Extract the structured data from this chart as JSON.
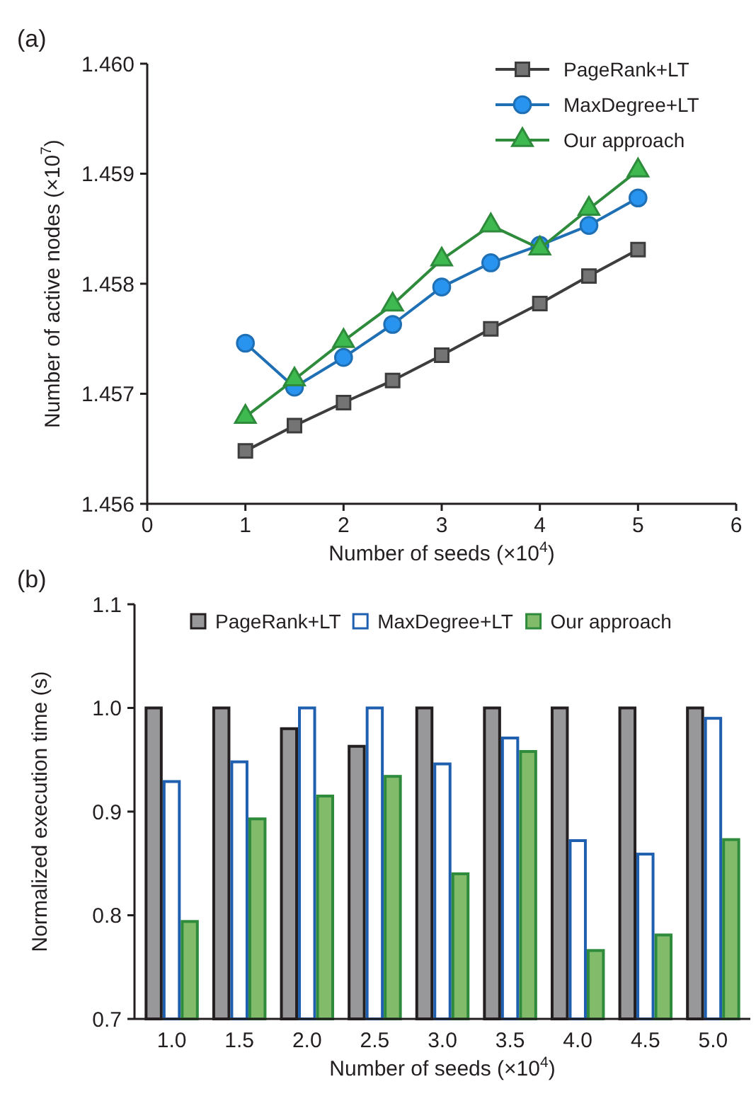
{
  "chart_data": [
    {
      "type": "line",
      "title": "(a)",
      "xlabel": "Number of seeds (×10$^{4}$)",
      "ylabel": "Number of active nodes (×10$^{7}$)",
      "x": [
        1,
        1.5,
        2,
        2.5,
        3,
        3.5,
        4,
        4.5,
        5
      ],
      "xlim": [
        0,
        6
      ],
      "xticks": [
        0,
        1,
        2,
        3,
        4,
        5,
        6
      ],
      "ylim": [
        1.456,
        1.46
      ],
      "yticks": [
        {
          "value": 1.456,
          "label": "1.456"
        },
        {
          "value": 1.457,
          "label": "1.457"
        },
        {
          "value": 1.458,
          "label": "1.458"
        },
        {
          "value": 1.459,
          "label": "1.459"
        },
        {
          "value": 1.46,
          "label": "1.460"
        }
      ],
      "grid": false,
      "legend": "top right",
      "series": [
        {
          "name": "PageRank+LT",
          "color": "#3d3d3d",
          "marker": "square",
          "values": [
            1.45648,
            1.45671,
            1.45692,
            1.45712,
            1.45735,
            1.45759,
            1.45782,
            1.45807,
            1.45831
          ]
        },
        {
          "name": "MaxDegree+LT",
          "color": "#1f6fb4",
          "marker": "circle",
          "values": [
            1.45746,
            1.45706,
            1.45733,
            1.45763,
            1.45797,
            1.45819,
            1.45835,
            1.45853,
            1.45878
          ]
        },
        {
          "name": "Our approach",
          "color": "#2e8b3c",
          "marker": "triangle",
          "values": [
            1.45679,
            1.45713,
            1.45748,
            1.45781,
            1.45822,
            1.45853,
            1.45832,
            1.45868,
            1.45903
          ]
        }
      ]
    },
    {
      "type": "bar",
      "title": "(b)",
      "xlabel": "Number of seeds (×10$^{4}$)",
      "ylabel": "Normalized execution time (s)",
      "categories": [
        "1.0",
        "1.5",
        "2.0",
        "2.5",
        "3.0",
        "3.5",
        "4.0",
        "4.5",
        "5.0"
      ],
      "ylim": [
        0.7,
        1.1
      ],
      "yticks": [
        {
          "value": 0.7,
          "label": "0.7"
        },
        {
          "value": 0.8,
          "label": "0.8"
        },
        {
          "value": 0.9,
          "label": "0.9"
        },
        {
          "value": 1.0,
          "label": "1.0"
        },
        {
          "value": 1.1,
          "label": "1.1"
        }
      ],
      "grid": false,
      "legend": "top",
      "series": [
        {
          "name": "PageRank+LT",
          "color": "#98989a",
          "values": [
            1,
            1,
            0.98,
            0.963,
            1,
            1,
            1,
            1,
            1
          ]
        },
        {
          "name": "MaxDegree+LT",
          "color": "#ffffff",
          "values": [
            0.929,
            0.948,
            1,
            1,
            0.946,
            0.971,
            0.872,
            0.859,
            0.99
          ]
        },
        {
          "name": "Our approach",
          "color": "#82bb6a",
          "values": [
            0.794,
            0.893,
            0.915,
            0.934,
            0.84,
            0.958,
            0.766,
            0.781,
            0.873
          ]
        }
      ]
    }
  ]
}
